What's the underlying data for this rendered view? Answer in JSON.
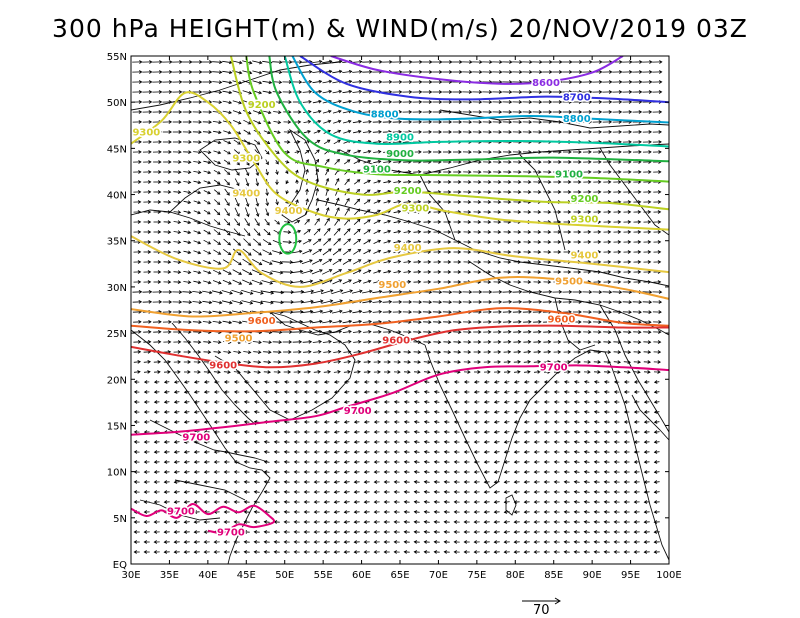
{
  "title": "300 hPa HEIGHT(m) & WIND(m/s) 20/NOV/2019 03Z",
  "axes": {
    "lon_labels": [
      "30E",
      "35E",
      "40E",
      "45E",
      "50E",
      "55E",
      "60E",
      "65E",
      "70E",
      "75E",
      "80E",
      "85E",
      "90E",
      "95E",
      "100E"
    ],
    "lat_labels": [
      "EQ",
      "5N",
      "10N",
      "15N",
      "20N",
      "25N",
      "30N",
      "35N",
      "40N",
      "45N",
      "50N",
      "55N"
    ],
    "lon_range": [
      30,
      100
    ],
    "lat_range": [
      0,
      55
    ]
  },
  "contours": [
    {
      "value": "8600",
      "color": "#8a2be2",
      "points": [
        [
          56,
          55
        ],
        [
          62,
          53.5
        ],
        [
          70,
          52.5
        ],
        [
          78,
          52
        ],
        [
          84,
          52.2
        ],
        [
          90,
          53.2
        ],
        [
          94,
          55
        ]
      ]
    },
    {
      "value": "8700",
      "color": "#3030e0",
      "points": [
        [
          52,
          55
        ],
        [
          58,
          52
        ],
        [
          66,
          50.6
        ],
        [
          74,
          50.3
        ],
        [
          84,
          50.6
        ],
        [
          92,
          50.4
        ],
        [
          100,
          50
        ]
      ]
    },
    {
      "value": "8800",
      "color": "#00a0d0",
      "points": [
        [
          51,
          55
        ],
        [
          54,
          51
        ],
        [
          59,
          49
        ],
        [
          65,
          48.2
        ],
        [
          73,
          48.2
        ],
        [
          82,
          48.5
        ],
        [
          90,
          48.2
        ],
        [
          100,
          47.8
        ]
      ]
    },
    {
      "value": "8900",
      "color": "#00c8a0",
      "points": [
        [
          50,
          55
        ],
        [
          52,
          50
        ],
        [
          56,
          46.5
        ],
        [
          62,
          45.5
        ],
        [
          70,
          45.7
        ],
        [
          80,
          45.8
        ],
        [
          90,
          45.6
        ],
        [
          100,
          45.2
        ]
      ]
    },
    {
      "value": "9000",
      "color": "#20b040",
      "points": [
        [
          48,
          55
        ],
        [
          49,
          51
        ],
        [
          53,
          46
        ],
        [
          58,
          44.3
        ],
        [
          66,
          43.7
        ],
        [
          75,
          43.8
        ],
        [
          85,
          44
        ],
        [
          100,
          43.6
        ]
      ]
    },
    {
      "value": "9100",
      "color": "#66cc22",
      "points": [
        [
          45,
          55
        ],
        [
          46,
          51
        ],
        [
          50,
          44.5
        ],
        [
          55,
          43
        ],
        [
          62,
          42.2
        ],
        [
          70,
          42.1
        ],
        [
          80,
          42
        ],
        [
          90,
          41.8
        ],
        [
          100,
          41.4
        ]
      ]
    },
    {
      "value": "9200",
      "color": "#bbd022",
      "points": [
        [
          43,
          55
        ],
        [
          45,
          49
        ],
        [
          49,
          44
        ],
        [
          53,
          41.4
        ],
        [
          60,
          40
        ],
        [
          66,
          40.3
        ],
        [
          74,
          39.8
        ],
        [
          84,
          39.2
        ],
        [
          92,
          39.1
        ],
        [
          100,
          38.4
        ]
      ]
    },
    {
      "value": "9300",
      "color": "#d8d030",
      "points": [
        [
          30,
          45.5
        ],
        [
          34,
          48
        ],
        [
          37,
          51
        ],
        [
          40,
          50
        ],
        [
          43,
          47.5
        ],
        [
          46,
          43.5
        ],
        [
          49,
          40
        ],
        [
          54,
          38
        ],
        [
          58,
          37.4
        ],
        [
          62,
          37.8
        ],
        [
          66,
          39
        ],
        [
          71,
          38.2
        ],
        [
          78,
          37.3
        ],
        [
          86,
          36.8
        ],
        [
          100,
          36.2
        ]
      ]
    },
    {
      "value": "9400",
      "color": "#e6c840",
      "points": [
        [
          30,
          35.5
        ],
        [
          36,
          33
        ],
        [
          42,
          32
        ],
        [
          44,
          34
        ],
        [
          47,
          31.5
        ],
        [
          52,
          30
        ],
        [
          58,
          31.5
        ],
        [
          64,
          33.2
        ],
        [
          72,
          34.2
        ],
        [
          80,
          33.3
        ],
        [
          90,
          32.5
        ],
        [
          100,
          31.6
        ]
      ]
    },
    {
      "value": "9500",
      "color": "#f0a030",
      "points": [
        [
          30,
          27.6
        ],
        [
          38,
          26.8
        ],
        [
          46,
          27.2
        ],
        [
          54,
          27.8
        ],
        [
          62,
          28.8
        ],
        [
          70,
          29.8
        ],
        [
          78,
          31
        ],
        [
          86,
          30.8
        ],
        [
          94,
          29.8
        ],
        [
          100,
          28.7
        ]
      ]
    },
    {
      "value": "9600",
      "color": "#f06020",
      "points": [
        [
          30,
          25.8
        ],
        [
          38,
          25.3
        ],
        [
          46,
          25.2
        ],
        [
          54,
          25.6
        ],
        [
          62,
          26
        ],
        [
          70,
          26.8
        ],
        [
          78,
          27.7
        ],
        [
          86,
          27.2
        ],
        [
          94,
          26.1
        ],
        [
          100,
          25.8
        ]
      ]
    },
    {
      "value": "9600",
      "color": "#e03030",
      "points": [
        [
          30,
          23.5
        ],
        [
          36,
          22.6
        ],
        [
          42,
          21.8
        ],
        [
          48,
          21.3
        ],
        [
          54,
          21.7
        ],
        [
          60,
          22.8
        ],
        [
          66,
          24.2
        ],
        [
          72,
          25.3
        ],
        [
          78,
          25.7
        ],
        [
          86,
          25.8
        ],
        [
          94,
          25.6
        ],
        [
          100,
          25.6
        ]
      ]
    },
    {
      "value": "9700",
      "color": "#e0007a",
      "points": [
        [
          30,
          14
        ],
        [
          36,
          14.3
        ],
        [
          42,
          14.8
        ],
        [
          48,
          15.4
        ],
        [
          54,
          16
        ],
        [
          58,
          17
        ],
        [
          64,
          18.5
        ],
        [
          70,
          20.5
        ],
        [
          76,
          21.3
        ],
        [
          82,
          21.4
        ],
        [
          88,
          21.5
        ],
        [
          94,
          21.3
        ],
        [
          100,
          21
        ]
      ]
    },
    {
      "value": "9700",
      "color": "#e0007a",
      "points": [
        [
          30,
          6
        ],
        [
          32,
          5.2
        ],
        [
          34,
          5.8
        ],
        [
          36,
          5
        ],
        [
          38,
          6.5
        ],
        [
          40,
          5.4
        ],
        [
          42,
          6.2
        ],
        [
          44,
          5.6
        ],
        [
          46,
          6.3
        ],
        [
          48,
          5.2
        ],
        [
          48.5,
          4.5
        ],
        [
          46,
          4
        ],
        [
          44,
          4.3
        ],
        [
          42,
          3.4
        ],
        [
          40,
          3.6
        ]
      ]
    }
  ],
  "closed_contours": [
    {
      "value": "9300",
      "color": "#20c040",
      "center": [
        50.4,
        35.2
      ],
      "radius_lon": 1.1,
      "radius_lat": 1.6
    }
  ],
  "contour_labels": [
    {
      "text": "8600",
      "color": "#8a2be2",
      "lon": 84,
      "lat": 52.2
    },
    {
      "text": "8700",
      "color": "#3030e0",
      "lon": 88,
      "lat": 50.6
    },
    {
      "text": "8800",
      "color": "#00a0d0",
      "lon": 63,
      "lat": 48.8
    },
    {
      "text": "8800",
      "color": "#00a0d0",
      "lon": 88,
      "lat": 48.3
    },
    {
      "text": "8900",
      "color": "#00c8a0",
      "lon": 65,
      "lat": 46.3
    },
    {
      "text": "9000",
      "color": "#20b040",
      "lon": 65,
      "lat": 44.5
    },
    {
      "text": "9100",
      "color": "#20b040",
      "lon": 62,
      "lat": 42.8
    },
    {
      "text": "9100",
      "color": "#20b040",
      "lon": 87,
      "lat": 42.3
    },
    {
      "text": "9200",
      "color": "#66cc22",
      "lon": 66,
      "lat": 40.5
    },
    {
      "text": "9200",
      "color": "#66cc22",
      "lon": 89,
      "lat": 39.6
    },
    {
      "text": "9300",
      "color": "#bbd022",
      "lon": 67,
      "lat": 38.6
    },
    {
      "text": "9300",
      "color": "#bbd022",
      "lon": 89,
      "lat": 37.4
    },
    {
      "text": "9300",
      "color": "#d8d030",
      "lon": 32,
      "lat": 46.8
    },
    {
      "text": "9300",
      "color": "#d8d030",
      "lon": 45,
      "lat": 44
    },
    {
      "text": "9200",
      "color": "#bbd022",
      "lon": 47,
      "lat": 49.8
    },
    {
      "text": "9400",
      "color": "#e6c840",
      "lon": 45,
      "lat": 40.2
    },
    {
      "text": "9400",
      "color": "#e6c840",
      "lon": 50.5,
      "lat": 38.3
    },
    {
      "text": "9400",
      "color": "#e6c840",
      "lon": 66,
      "lat": 34.3
    },
    {
      "text": "9400",
      "color": "#e6c840",
      "lon": 89,
      "lat": 33.5
    },
    {
      "text": "9500",
      "color": "#f0a030",
      "lon": 64,
      "lat": 30.3
    },
    {
      "text": "9500",
      "color": "#f0a030",
      "lon": 87,
      "lat": 30.7
    },
    {
      "text": "9600",
      "color": "#f06020",
      "lon": 47,
      "lat": 26.4
    },
    {
      "text": "9600",
      "color": "#f06020",
      "lon": 86,
      "lat": 26.6
    },
    {
      "text": "9500",
      "color": "#f0a030",
      "lon": 44,
      "lat": 24.5
    },
    {
      "text": "9600",
      "color": "#e03030",
      "lon": 64.5,
      "lat": 24.3
    },
    {
      "text": "9600",
      "color": "#e03030",
      "lon": 42,
      "lat": 21.6
    },
    {
      "text": "9700",
      "color": "#e0007a",
      "lon": 85,
      "lat": 21.4
    },
    {
      "text": "9700",
      "color": "#e0007a",
      "lon": 59.5,
      "lat": 16.7
    },
    {
      "text": "9700",
      "color": "#e0007a",
      "lon": 38.5,
      "lat": 13.8
    },
    {
      "text": "9700",
      "color": "#e0007a",
      "lon": 36.5,
      "lat": 5.8
    },
    {
      "text": "9700",
      "color": "#e0007a",
      "lon": 43,
      "lat": 3.5
    }
  ],
  "reference_vector": {
    "label": "70"
  }
}
